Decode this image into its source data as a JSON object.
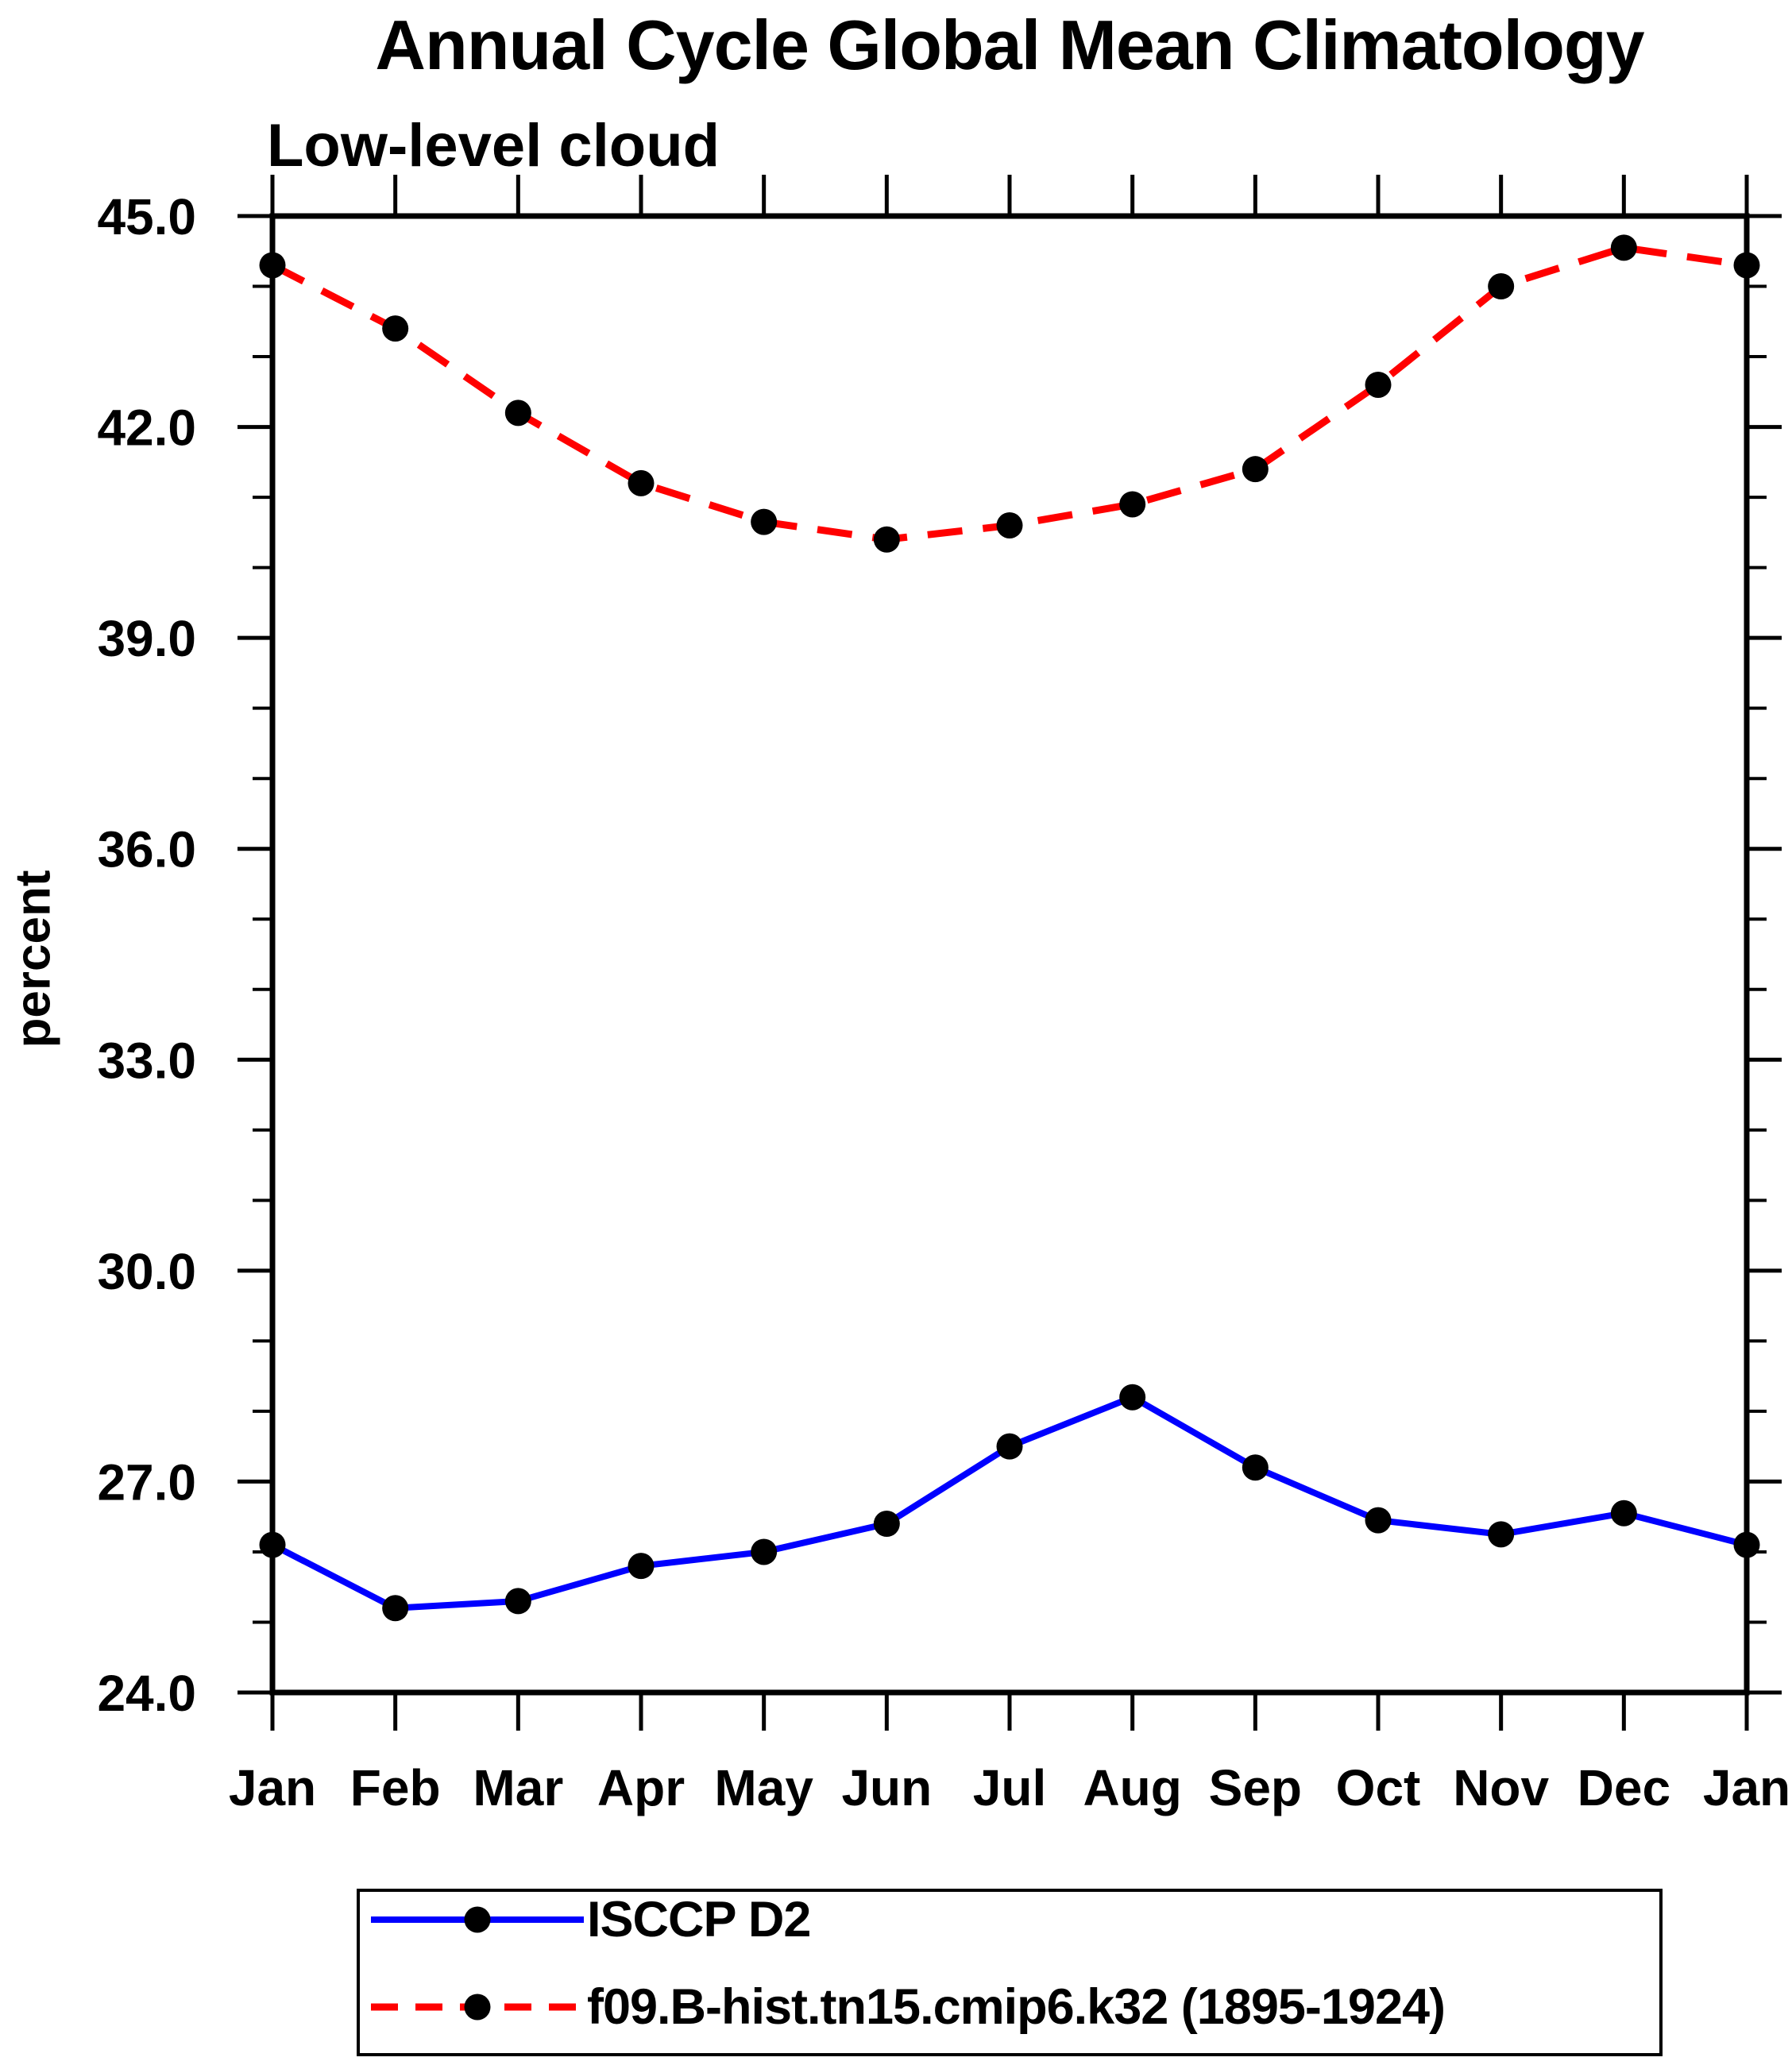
{
  "chart_data": {
    "type": "line",
    "title": "Annual Cycle Global Mean Climatology",
    "subtitle": "Low-level cloud",
    "ylabel": "percent",
    "xlabel": "",
    "x_categories": [
      "Jan",
      "Feb",
      "Mar",
      "Apr",
      "May",
      "Jun",
      "Jul",
      "Aug",
      "Sep",
      "Oct",
      "Nov",
      "Dec",
      "Jan"
    ],
    "ylim": [
      24.0,
      45.0
    ],
    "y_major_ticks": [
      24.0,
      27.0,
      30.0,
      33.0,
      36.0,
      39.0,
      42.0,
      45.0
    ],
    "y_tick_labels": [
      "24.0",
      "27.0",
      "30.0",
      "33.0",
      "36.0",
      "39.0",
      "42.0",
      "45.0"
    ],
    "y_minor_step": 1.0,
    "grid": false,
    "legend_position": "bottom",
    "axis_color": "#000000",
    "marker": "filled-circle",
    "marker_color": "#000000",
    "series": [
      {
        "name": "ISCCP D2",
        "color": "#0000FF",
        "line_style": "solid",
        "values": [
          26.1,
          25.2,
          25.3,
          25.8,
          26.0,
          26.4,
          27.5,
          28.2,
          27.2,
          26.45,
          26.25,
          26.55,
          26.1
        ]
      },
      {
        "name": "f09.B-hist.tn15.cmip6.k32 (1895-1924)",
        "color": "#FF0000",
        "line_style": "dashed",
        "values": [
          44.3,
          43.4,
          42.2,
          41.2,
          40.65,
          40.4,
          40.6,
          40.9,
          41.4,
          42.6,
          44.0,
          44.55,
          44.3
        ]
      }
    ]
  }
}
